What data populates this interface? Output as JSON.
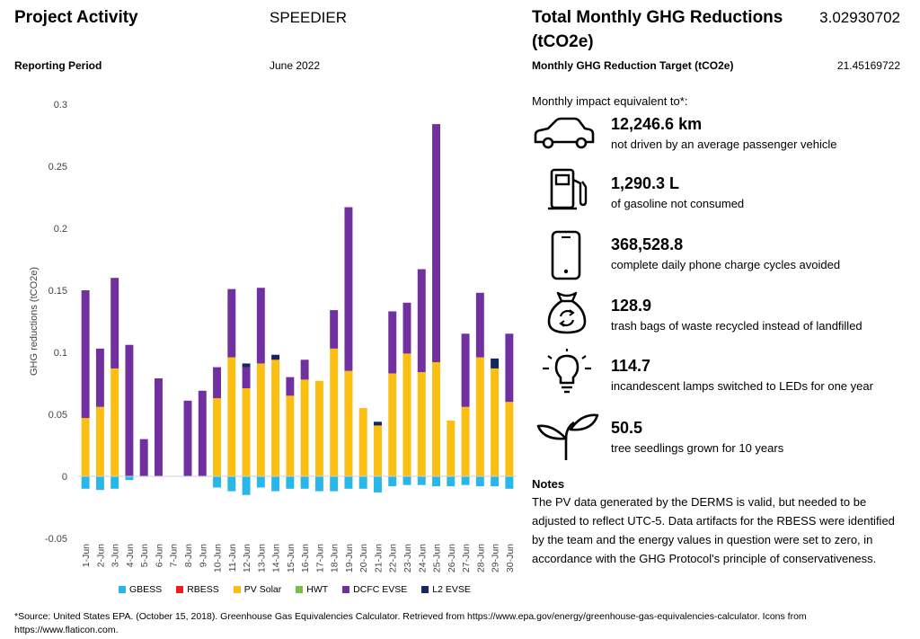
{
  "header": {
    "project_label": "Project Activity",
    "project_name": "SPEEDIER",
    "period_label": "Reporting Period",
    "period_value": "June 2022",
    "total_label_line1": "Total Monthly GHG Reductions",
    "total_label_line2": "(tCO2e)",
    "total_value": "3.02930702",
    "target_label": "Monthly GHG Reduction Target (tCO2e)",
    "target_value": "21.45169722"
  },
  "impact": {
    "intro": "Monthly impact equivalent to*:",
    "items": [
      {
        "icon": "car-icon",
        "value": "12,246.6 km",
        "desc": "not driven by an average passenger vehicle"
      },
      {
        "icon": "gas-pump-icon",
        "value": "1,290.3 L",
        "desc": "of gasoline not consumed"
      },
      {
        "icon": "phone-icon",
        "value": "368,528.8",
        "desc": "complete daily phone charge cycles avoided"
      },
      {
        "icon": "recycle-bag-icon",
        "value": "128.9",
        "desc": "trash bags of waste recycled instead of landfilled"
      },
      {
        "icon": "lightbulb-icon",
        "value": "114.7",
        "desc": "incandescent lamps switched to LEDs for one year"
      },
      {
        "icon": "seedling-icon",
        "value": "50.5",
        "desc": "tree seedlings grown for 10 years"
      }
    ]
  },
  "notes": {
    "title": "Notes",
    "body": "The PV data generated by the DERMS is valid, but needed to be adjusted to reflect UTC-5. Data artifacts for the RBESS were identified by the team and the energy values in question were set to zero, in accordance with the GHG Protocol's principle of conservativeness."
  },
  "footnote": "*Source: United States EPA. (October 15, 2018). Greenhouse Gas Equivalencies Calculator. Retrieved from https://www.epa.gov/energy/greenhouse-gas-equivalencies-calculator. Icons from https://www.flaticon.com.",
  "chart_data": {
    "type": "bar",
    "stacked": true,
    "ylabel": "GHG reductions (tCO2e)",
    "ylim": [
      -0.05,
      0.3
    ],
    "yticks": [
      -0.05,
      0,
      0.05,
      0.1,
      0.15,
      0.2,
      0.25,
      0.3
    ],
    "ytick_labels": [
      "-0.05",
      "0",
      "0.05",
      "0.1",
      "0.15",
      "0.2",
      "0.25",
      "0.3"
    ],
    "grid": false,
    "legend_position": "bottom",
    "categories": [
      "1-Jun",
      "2-Jun",
      "3-Jun",
      "4-Jun",
      "5-Jun",
      "6-Jun",
      "7-Jun",
      "8-Jun",
      "9-Jun",
      "10-Jun",
      "11-Jun",
      "12-Jun",
      "13-Jun",
      "14-Jun",
      "15-Jun",
      "16-Jun",
      "17-Jun",
      "18-Jun",
      "19-Jun",
      "20-Jun",
      "21-Jun",
      "22-Jun",
      "23-Jun",
      "24-Jun",
      "25-Jun",
      "26-Jun",
      "27-Jun",
      "28-Jun",
      "29-Jun",
      "30-Jun"
    ],
    "series": [
      {
        "name": "GBESS",
        "color": "#29b6e8",
        "values": [
          -0.01,
          -0.011,
          -0.01,
          -0.003,
          0,
          0,
          0,
          0,
          0,
          -0.009,
          -0.012,
          -0.015,
          -0.009,
          -0.012,
          -0.01,
          -0.01,
          -0.012,
          -0.012,
          -0.01,
          -0.01,
          -0.013,
          -0.008,
          -0.007,
          -0.007,
          -0.008,
          -0.008,
          -0.007,
          -0.008,
          -0.008,
          -0.01
        ]
      },
      {
        "name": "RBESS",
        "color": "#ee1c25",
        "values": [
          0,
          0,
          0,
          0,
          0,
          0,
          0,
          0,
          0,
          0,
          0,
          0,
          0,
          0,
          0,
          0,
          0,
          0,
          0,
          0,
          0,
          0,
          0,
          0,
          0,
          0,
          0,
          0,
          0,
          0
        ]
      },
      {
        "name": "PV Solar",
        "color": "#fbbf13",
        "values": [
          0.047,
          0.056,
          0.087,
          0,
          0,
          0,
          0,
          0,
          0,
          0.063,
          0.096,
          0.071,
          0.091,
          0.094,
          0.065,
          0.078,
          0.077,
          0.103,
          0.085,
          0.055,
          0.041,
          0.083,
          0.099,
          0.084,
          0.092,
          0.045,
          0.056,
          0.096,
          0.087,
          0.06
        ]
      },
      {
        "name": "HWT",
        "color": "#72c045",
        "values": [
          0,
          0,
          0,
          0,
          0,
          0,
          0,
          0,
          0,
          0,
          0,
          0,
          0,
          0,
          0,
          0,
          0,
          0,
          0,
          0,
          0,
          0,
          0,
          0,
          0,
          0,
          0,
          0,
          0,
          0
        ]
      },
      {
        "name": "DCFC EVSE",
        "color": "#7030a0",
        "values": [
          0.103,
          0.047,
          0.073,
          0.106,
          0.03,
          0.079,
          0,
          0.061,
          0.069,
          0.025,
          0.055,
          0.017,
          0.061,
          0,
          0.015,
          0.016,
          0,
          0.031,
          0.132,
          0,
          0,
          0.05,
          0.041,
          0.083,
          0.192,
          0,
          0.059,
          0.052,
          0,
          0.055
        ]
      },
      {
        "name": "L2 EVSE",
        "color": "#14265c",
        "values": [
          0,
          0,
          0,
          0,
          0,
          0,
          0,
          0,
          0,
          0,
          0,
          0.003,
          0,
          0.004,
          0,
          0,
          0,
          0,
          0,
          0,
          0.003,
          0,
          0,
          0,
          0,
          0,
          0,
          0,
          0.008,
          0
        ]
      }
    ]
  }
}
